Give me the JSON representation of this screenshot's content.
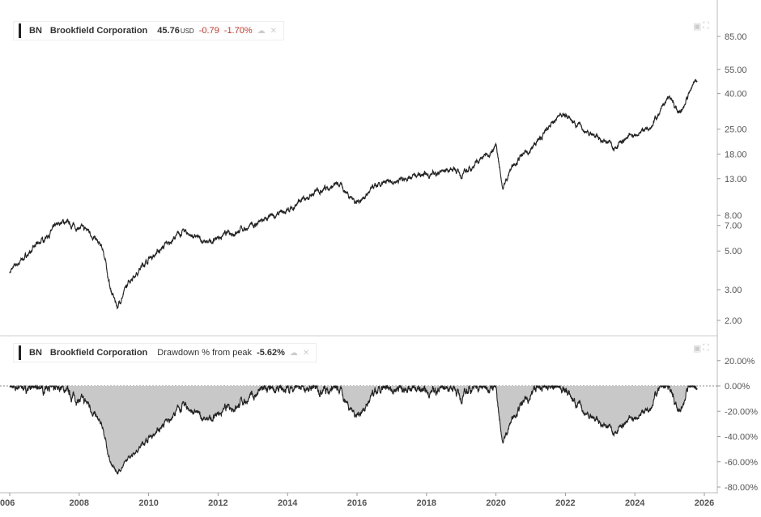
{
  "legend_top": {
    "ticker": "BN",
    "name": "Brookfield Corporation",
    "price": "45.76",
    "currency": "USD",
    "change": "-0.79",
    "change_pct": "-1.70%"
  },
  "legend_bottom": {
    "ticker": "BN",
    "name": "Brookfield Corporation",
    "indicator": "Drawdown % from peak",
    "value": "-5.62%"
  },
  "colors": {
    "line": "#222222",
    "fill": "#c8c8c8",
    "negative": "#c0392b"
  },
  "icons": [
    "cloud-icon",
    "close-icon",
    "download-icon",
    "fullscreen-icon"
  ],
  "chart_data": [
    {
      "type": "line",
      "scale": "log",
      "ylim": [
        1.8,
        100
      ],
      "yticks": [
        "85.00",
        "55.00",
        "40.00",
        "25.00",
        "18.00",
        "13.00",
        "8.00",
        "7.00",
        "5.00",
        "3.00",
        "2.00"
      ],
      "x": [
        2006.0,
        2007.5,
        2008.0,
        2008.3,
        2008.7,
        2008.9,
        2009.1,
        2009.5,
        2010.0,
        2011.0,
        2011.7,
        2012.0,
        2013.0,
        2014.0,
        2015.0,
        2015.5,
        2016.0,
        2016.5,
        2017.5,
        2018.0,
        2018.8,
        2019.0,
        2020.0,
        2020.2,
        2020.5,
        2021.0,
        2021.9,
        2022.5,
        2023.0,
        2023.4,
        2024.0,
        2024.5,
        2025.0,
        2025.3,
        2025.7,
        2025.8
      ],
      "y": [
        3.8,
        7.4,
        6.8,
        6.5,
        5.0,
        3.0,
        2.4,
        3.5,
        4.5,
        6.5,
        5.5,
        6.0,
        7.0,
        8.5,
        11.5,
        12.0,
        9.5,
        11.5,
        13.5,
        13.5,
        15.0,
        13.5,
        20.0,
        11.5,
        16.0,
        19.0,
        31.0,
        25.0,
        22.0,
        20.0,
        23.0,
        27.0,
        38.0,
        30.0,
        47.0,
        45.76
      ]
    },
    {
      "type": "area",
      "title": "Drawdown % from peak",
      "ylim": [
        -85,
        25
      ],
      "yticks": [
        "20.00%",
        "0.00%",
        "-20.00%",
        "-40.00%",
        "-60.00%",
        "-80.00%"
      ],
      "xticks": [
        "006",
        "2008",
        "2010",
        "2012",
        "2014",
        "2016",
        "2018",
        "2020",
        "2022",
        "2024",
        "2026"
      ]
    }
  ]
}
